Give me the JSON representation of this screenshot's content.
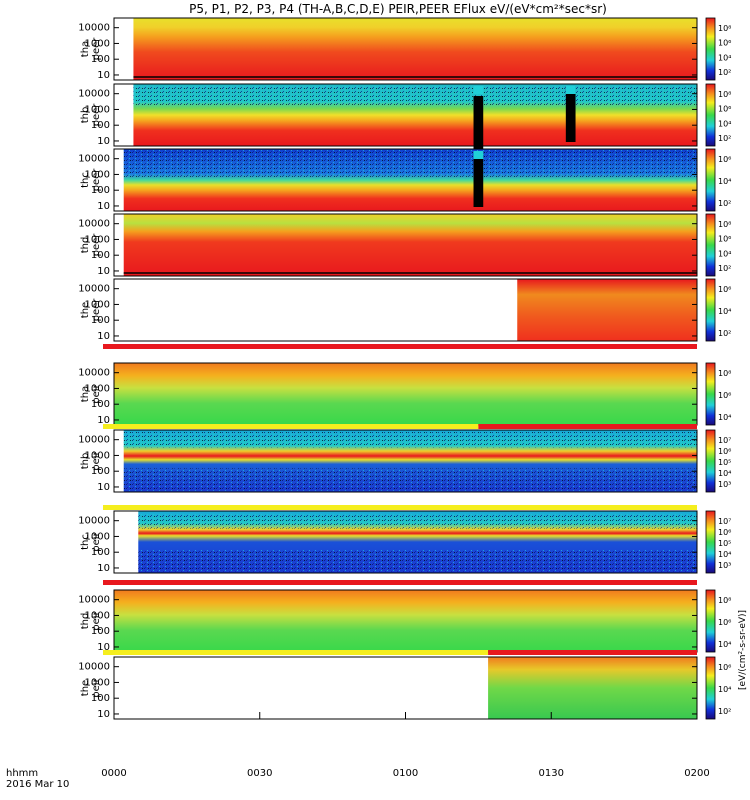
{
  "title": "P5, P1, P2, P3, P4 (TH-A,B,C,D,E) PEIR,PEER EFlux eV/(eV*cm²*sec*sr)",
  "colorbar_unit_label": "[eV/(cm²-s-sr-eV)]",
  "time_axis": {
    "row_label_1": "hhmm",
    "row_label_2": "2016 Mar 10",
    "tick_labels": [
      "0000",
      "0030",
      "0100",
      "0130",
      "0200"
    ],
    "range": [
      "00:00",
      "02:00"
    ]
  },
  "chart_data": [
    {
      "type": "heatmap",
      "panel": "tha peer",
      "ylabel_top": "tha",
      "ylabel_bottom": "peer",
      "ytick_labels": [
        "10000",
        "1000",
        "100",
        "10"
      ],
      "scale": "log",
      "cbar_ticks": [
        "10⁸",
        "10⁶",
        "10⁴",
        "10²"
      ],
      "data_start": "00:04",
      "data_end": "02:00",
      "gaps": [],
      "status_bar": "none"
    },
    {
      "type": "heatmap",
      "panel": "thb peer",
      "ylabel_top": "thb",
      "ylabel_bottom": "peer",
      "ytick_labels": [
        "10000",
        "1000",
        "100",
        "10"
      ],
      "scale": "log",
      "cbar_ticks": [
        "10⁸",
        "10⁶",
        "10⁴",
        "10²"
      ],
      "data_start": "00:04",
      "data_end": "02:00",
      "gaps": [
        [
          "01:14",
          "01:16"
        ],
        [
          "01:33",
          "01:35"
        ]
      ],
      "status_bar": "none"
    },
    {
      "type": "heatmap",
      "panel": "thc peer",
      "ylabel_top": "thc",
      "ylabel_bottom": "peer",
      "ytick_labels": [
        "10000",
        "1000",
        "100",
        "10"
      ],
      "scale": "log",
      "cbar_ticks": [
        "10⁶",
        "10⁴",
        "10²"
      ],
      "data_start": "00:02",
      "data_end": "02:00",
      "gaps": [
        [
          "01:14",
          "01:16"
        ]
      ],
      "status_bar": "none"
    },
    {
      "type": "heatmap",
      "panel": "thd peer",
      "ylabel_top": "thd",
      "ylabel_bottom": "peer",
      "ytick_labels": [
        "10000",
        "1000",
        "100",
        "10"
      ],
      "scale": "log",
      "cbar_ticks": [
        "10⁸",
        "10⁶",
        "10⁴",
        "10²"
      ],
      "data_start": "00:02",
      "data_end": "02:00",
      "gaps": [],
      "status_bar": "none"
    },
    {
      "type": "heatmap",
      "panel": "the peer",
      "ylabel_top": "the",
      "ylabel_bottom": "peer",
      "ytick_labels": [
        "10000",
        "1000",
        "100",
        "10"
      ],
      "scale": "log",
      "cbar_ticks": [
        "10⁶",
        "10⁴",
        "10²"
      ],
      "data_start": "01:23",
      "data_end": "02:00",
      "gaps": [],
      "status_bar": "red"
    },
    {
      "type": "heatmap",
      "panel": "tha peir",
      "ylabel_top": "tha",
      "ylabel_bottom": "peir",
      "ytick_labels": [
        "10000",
        "1000",
        "100",
        "10"
      ],
      "scale": "log",
      "cbar_ticks": [
        "10⁸",
        "10⁶",
        "10⁴"
      ],
      "data_start": "00:00",
      "data_end": "02:00",
      "gaps": [],
      "status_bar": "yellow-red"
    },
    {
      "type": "heatmap",
      "panel": "thb peir",
      "ylabel_top": "thb",
      "ylabel_bottom": "peir",
      "ytick_labels": [
        "10000",
        "1000",
        "100",
        "10"
      ],
      "scale": "log",
      "cbar_ticks": [
        "10⁷",
        "10⁶",
        "10⁵",
        "10⁴",
        "10³"
      ],
      "data_start": "00:02",
      "data_end": "02:00",
      "gaps": [],
      "status_bar": "yellow-white"
    },
    {
      "type": "heatmap",
      "panel": "thc peir",
      "ylabel_top": "thc",
      "ylabel_bottom": "peir",
      "ytick_labels": [
        "10000",
        "1000",
        "100",
        "10"
      ],
      "scale": "log",
      "cbar_ticks": [
        "10⁷",
        "10⁶",
        "10⁵",
        "10⁴",
        "10³"
      ],
      "data_start": "00:05",
      "data_end": "02:00",
      "gaps": [],
      "status_bar": "red"
    },
    {
      "type": "heatmap",
      "panel": "thd peir",
      "ylabel_top": "thd",
      "ylabel_bottom": "peir",
      "ytick_labels": [
        "10000",
        "1000",
        "100",
        "10"
      ],
      "scale": "log",
      "cbar_ticks": [
        "10⁸",
        "10⁶",
        "10⁴"
      ],
      "data_start": "00:00",
      "data_end": "02:00",
      "gaps": [],
      "status_bar": "yellow-red"
    },
    {
      "type": "heatmap",
      "panel": "the peir",
      "ylabel_top": "the",
      "ylabel_bottom": "peir",
      "ytick_labels": [
        "10000",
        "1000",
        "100",
        "10"
      ],
      "scale": "log",
      "cbar_ticks": [
        "10⁶",
        "10⁴",
        "10²"
      ],
      "data_start": "01:17",
      "data_end": "02:00",
      "gaps": [],
      "status_bar": "none"
    }
  ],
  "colors": {
    "red": "#e8181e",
    "yellow": "#f5ee1e",
    "green": "#38d84a",
    "cyan": "#20d0d8",
    "blue": "#1030d8",
    "black": "#000000"
  }
}
